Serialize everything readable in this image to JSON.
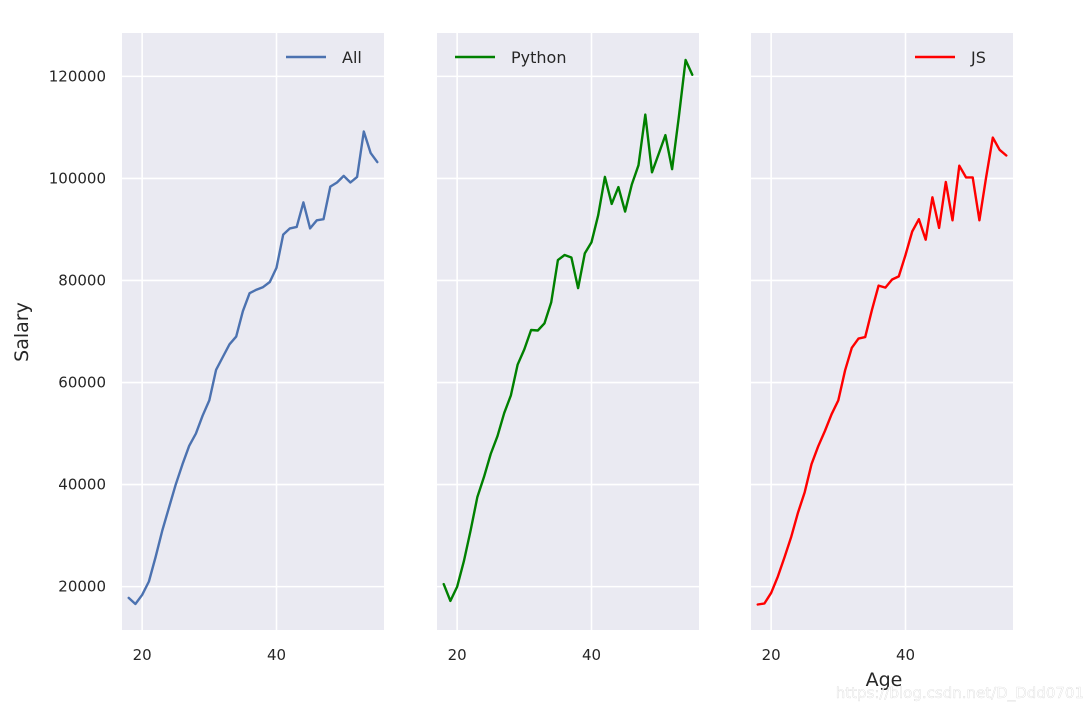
{
  "chart_data": {
    "type": "line",
    "ylabel": "Salary",
    "xlabel": "Age",
    "sharey": true,
    "grid": true,
    "background": "#eaeaf2",
    "xlim": [
      17,
      56
    ],
    "ylim": [
      11500,
      128500
    ],
    "xticks": [
      20,
      40
    ],
    "yticks": [
      20000,
      40000,
      60000,
      80000,
      100000,
      120000
    ],
    "watermark": "https://blog.csdn.net/D_Ddd0701",
    "x": [
      18,
      19,
      20,
      21,
      22,
      23,
      24,
      25,
      26,
      27,
      28,
      29,
      30,
      31,
      32,
      33,
      34,
      35,
      36,
      37,
      38,
      39,
      40,
      41,
      42,
      43,
      44,
      45,
      46,
      47,
      48,
      49,
      50,
      51,
      52,
      53,
      54,
      55
    ],
    "panels": [
      {
        "name": "All",
        "color": "#4c72b0",
        "legend_loc": "upper right",
        "values": [
          17800,
          16600,
          18400,
          21000,
          25800,
          31000,
          35500,
          40000,
          44000,
          47600,
          50000,
          53500,
          56500,
          62500,
          65000,
          67500,
          69000,
          74000,
          77500,
          78200,
          78700,
          79700,
          82500,
          89000,
          90200,
          90500,
          95300,
          90200,
          91800,
          92000,
          98400,
          99200,
          100500,
          99200,
          100300,
          109200,
          105000,
          103200
        ]
      },
      {
        "name": "Python",
        "color": "#008000",
        "legend_loc": "upper left",
        "values": [
          20500,
          17200,
          20000,
          25000,
          31000,
          37500,
          41500,
          46000,
          49500,
          54000,
          57500,
          63500,
          66500,
          70300,
          70200,
          71600,
          75700,
          84000,
          85000,
          84500,
          78500,
          85300,
          87500,
          92800,
          100300,
          95000,
          98300,
          93500,
          98800,
          102600,
          112500,
          101200,
          104800,
          108500,
          101800,
          112000,
          123200,
          120300
        ]
      },
      {
        "name": "JS",
        "color": "#ff0000",
        "legend_loc": "upper right",
        "values": [
          16500,
          16700,
          18800,
          22000,
          25800,
          29800,
          34500,
          38500,
          44000,
          47500,
          50500,
          53800,
          56500,
          62400,
          66800,
          68600,
          68900,
          74200,
          79000,
          78600,
          80200,
          80800,
          85000,
          89600,
          92000,
          88000,
          96300,
          90300,
          99300,
          91800,
          102500,
          100200,
          100200,
          91800,
          100200,
          108000,
          105600,
          104500
        ]
      }
    ]
  }
}
